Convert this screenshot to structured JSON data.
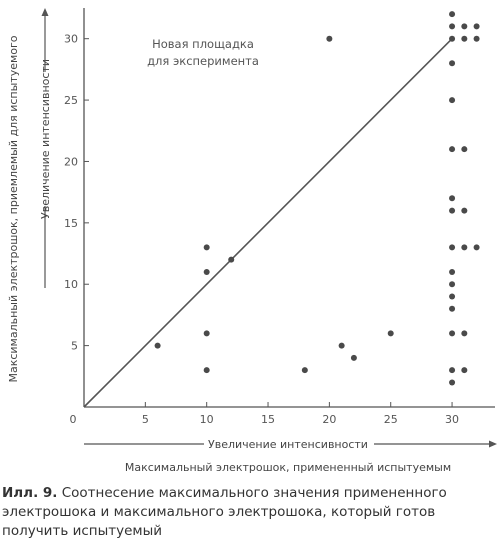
{
  "chart_data": {
    "type": "scatter",
    "annotation_lines": [
      "Новая площадка",
      "для эксперимента"
    ],
    "xlabel_lines": [
      "Увеличение интенсивности",
      "Максимальный электрошок, примененный испытуемым"
    ],
    "ylabel_lines": [
      "Максимальный электрошок, приемлемый для испытуемого",
      "Увеличение интенсивности"
    ],
    "xlim": [
      0,
      33.5
    ],
    "ylim": [
      0,
      32.5
    ],
    "x_ticks": [
      0,
      5,
      10,
      15,
      20,
      25,
      30
    ],
    "y_ticks": [
      5,
      10,
      15,
      20,
      25,
      30
    ],
    "grid": false,
    "reference_line": {
      "from": [
        0,
        0
      ],
      "to": [
        30,
        30
      ]
    },
    "points": [
      {
        "x": 6,
        "y": 5
      },
      {
        "x": 10,
        "y": 13
      },
      {
        "x": 10,
        "y": 11
      },
      {
        "x": 10,
        "y": 6
      },
      {
        "x": 10,
        "y": 3
      },
      {
        "x": 12,
        "y": 12
      },
      {
        "x": 18,
        "y": 3
      },
      {
        "x": 20,
        "y": 30
      },
      {
        "x": 21,
        "y": 5
      },
      {
        "x": 22,
        "y": 4
      },
      {
        "x": 25,
        "y": 6
      },
      {
        "x": 30,
        "y": 32
      },
      {
        "x": 30,
        "y": 31
      },
      {
        "x": 30,
        "y": 30
      },
      {
        "x": 30,
        "y": 28
      },
      {
        "x": 30,
        "y": 25
      },
      {
        "x": 30,
        "y": 21
      },
      {
        "x": 30,
        "y": 17
      },
      {
        "x": 30,
        "y": 16
      },
      {
        "x": 30,
        "y": 13
      },
      {
        "x": 30,
        "y": 11
      },
      {
        "x": 30,
        "y": 10
      },
      {
        "x": 30,
        "y": 9
      },
      {
        "x": 30,
        "y": 8
      },
      {
        "x": 30,
        "y": 6
      },
      {
        "x": 30,
        "y": 3
      },
      {
        "x": 30,
        "y": 2
      },
      {
        "x": 31,
        "y": 31
      },
      {
        "x": 31,
        "y": 30
      },
      {
        "x": 31,
        "y": 21
      },
      {
        "x": 31,
        "y": 16
      },
      {
        "x": 31,
        "y": 13
      },
      {
        "x": 31,
        "y": 6
      },
      {
        "x": 31,
        "y": 3
      },
      {
        "x": 32,
        "y": 31
      },
      {
        "x": 32,
        "y": 30
      },
      {
        "x": 32,
        "y": 13
      }
    ]
  },
  "caption": {
    "figure_label": "Илл. 9.",
    "text": " Соотнесение максимального значения примененного электрошока и максимального электрошока, который готов получить испытуемый"
  },
  "colors": {
    "ink": "#555555",
    "points": "#4a4a4a",
    "text": "#333333"
  }
}
